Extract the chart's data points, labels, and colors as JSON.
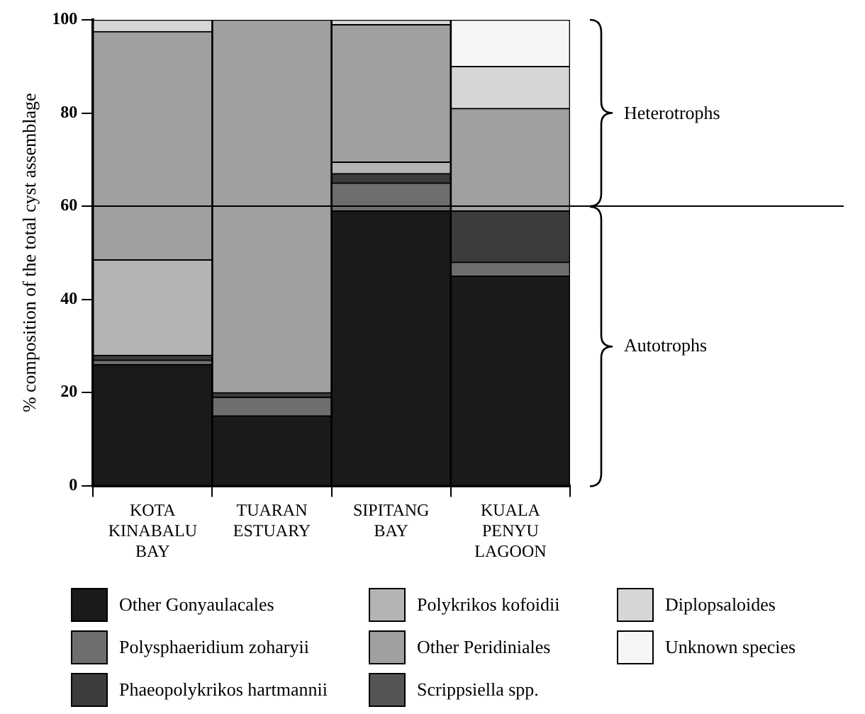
{
  "chart_data": {
    "type": "bar",
    "stacked": true,
    "ylabel": "% composition of the total cyst assemblage",
    "categories": [
      "KOTA KINABALU BAY",
      "TUARAN ESTUARY",
      "SIPITANG BAY",
      "KUALA PENYU LAGOON"
    ],
    "series": [
      {
        "name": "Other Gonyaulacales",
        "color": "#1a1a1a",
        "values": [
          26,
          15,
          59,
          45
        ]
      },
      {
        "name": "Polysphaeridium zoharyii",
        "color": "#6e6e6e",
        "values": [
          1,
          4,
          6,
          3
        ]
      },
      {
        "name": "Phaeopolykrikos hartmannii",
        "color": "#3c3c3c",
        "values": [
          1,
          1,
          2,
          11
        ]
      },
      {
        "name": "Polykrikos kofoidii",
        "color": "#b4b4b4",
        "values": [
          20.5,
          0,
          2.5,
          0
        ]
      },
      {
        "name": "Other Peridiniales",
        "color": "#a0a0a0",
        "values": [
          49,
          80,
          29.5,
          22
        ]
      },
      {
        "name": "Scrippsiella spp.",
        "color": "#555555",
        "values": [
          0,
          0,
          0,
          0
        ]
      },
      {
        "name": "Diplopsaloides",
        "color": "#d6d6d6",
        "values": [
          2.5,
          0,
          1,
          9
        ]
      },
      {
        "name": "Unknown species",
        "color": "#f6f6f6",
        "values": [
          0,
          0,
          0,
          10
        ]
      }
    ],
    "ylim": [
      0,
      100
    ],
    "yticks": [
      0,
      20,
      40,
      60,
      80,
      100
    ],
    "grid": false,
    "legend": "bottom",
    "ref_lines": [
      {
        "axis": "y",
        "value": 60
      }
    ],
    "annotations": [
      "Heterotrophs",
      "Autotrophs"
    ]
  }
}
